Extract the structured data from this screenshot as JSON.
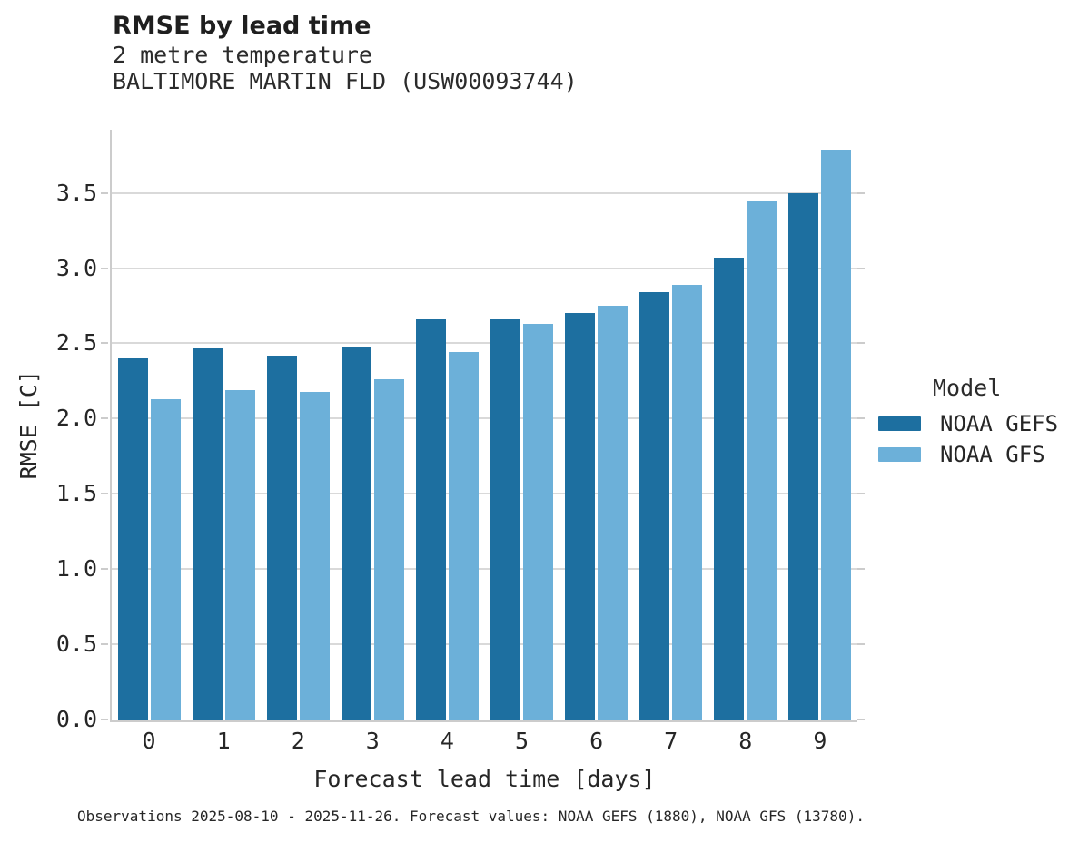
{
  "header": {
    "title": "RMSE by lead time",
    "subtitle_variable": "2 metre temperature",
    "subtitle_station": "BALTIMORE MARTIN FLD (USW00093744)"
  },
  "chart_data": {
    "type": "bar",
    "title": "RMSE by lead time",
    "subtitle": "2 metre temperature — BALTIMORE MARTIN FLD (USW00093744)",
    "categories": [
      "0",
      "1",
      "2",
      "3",
      "4",
      "5",
      "6",
      "7",
      "8",
      "9"
    ],
    "series": [
      {
        "name": "NOAA GEFS",
        "color": "#1d6fa0",
        "values": [
          2.4,
          2.47,
          2.42,
          2.48,
          2.66,
          2.66,
          2.7,
          2.84,
          3.07,
          3.5
        ]
      },
      {
        "name": "NOAA GFS",
        "color": "#6cb0d9",
        "values": [
          2.13,
          2.19,
          2.18,
          2.26,
          2.44,
          2.63,
          2.75,
          2.89,
          3.45,
          3.79
        ]
      }
    ],
    "xlabel": "Forecast lead time [days]",
    "ylabel": "RMSE [C]",
    "ylim": [
      0,
      3.92
    ],
    "yticks": [
      0.0,
      0.5,
      1.0,
      1.5,
      2.0,
      2.5,
      3.0,
      3.5
    ],
    "grid": true,
    "legend_title": "Model",
    "legend_position": "right"
  },
  "legend": {
    "title": "Model",
    "items": [
      {
        "label": "NOAA GEFS",
        "color": "#1d6fa0"
      },
      {
        "label": "NOAA GFS",
        "color": "#6cb0d9"
      }
    ]
  },
  "colors": {
    "gefs": "#1d6fa0",
    "gfs": "#6cb0d9",
    "gridline": "#d9d9d9",
    "spine": "#cccccc",
    "text": "#262626"
  },
  "footer": {
    "note": "Observations 2025-08-10 - 2025-11-26. Forecast values: NOAA GEFS (1880), NOAA GFS (13780)."
  }
}
